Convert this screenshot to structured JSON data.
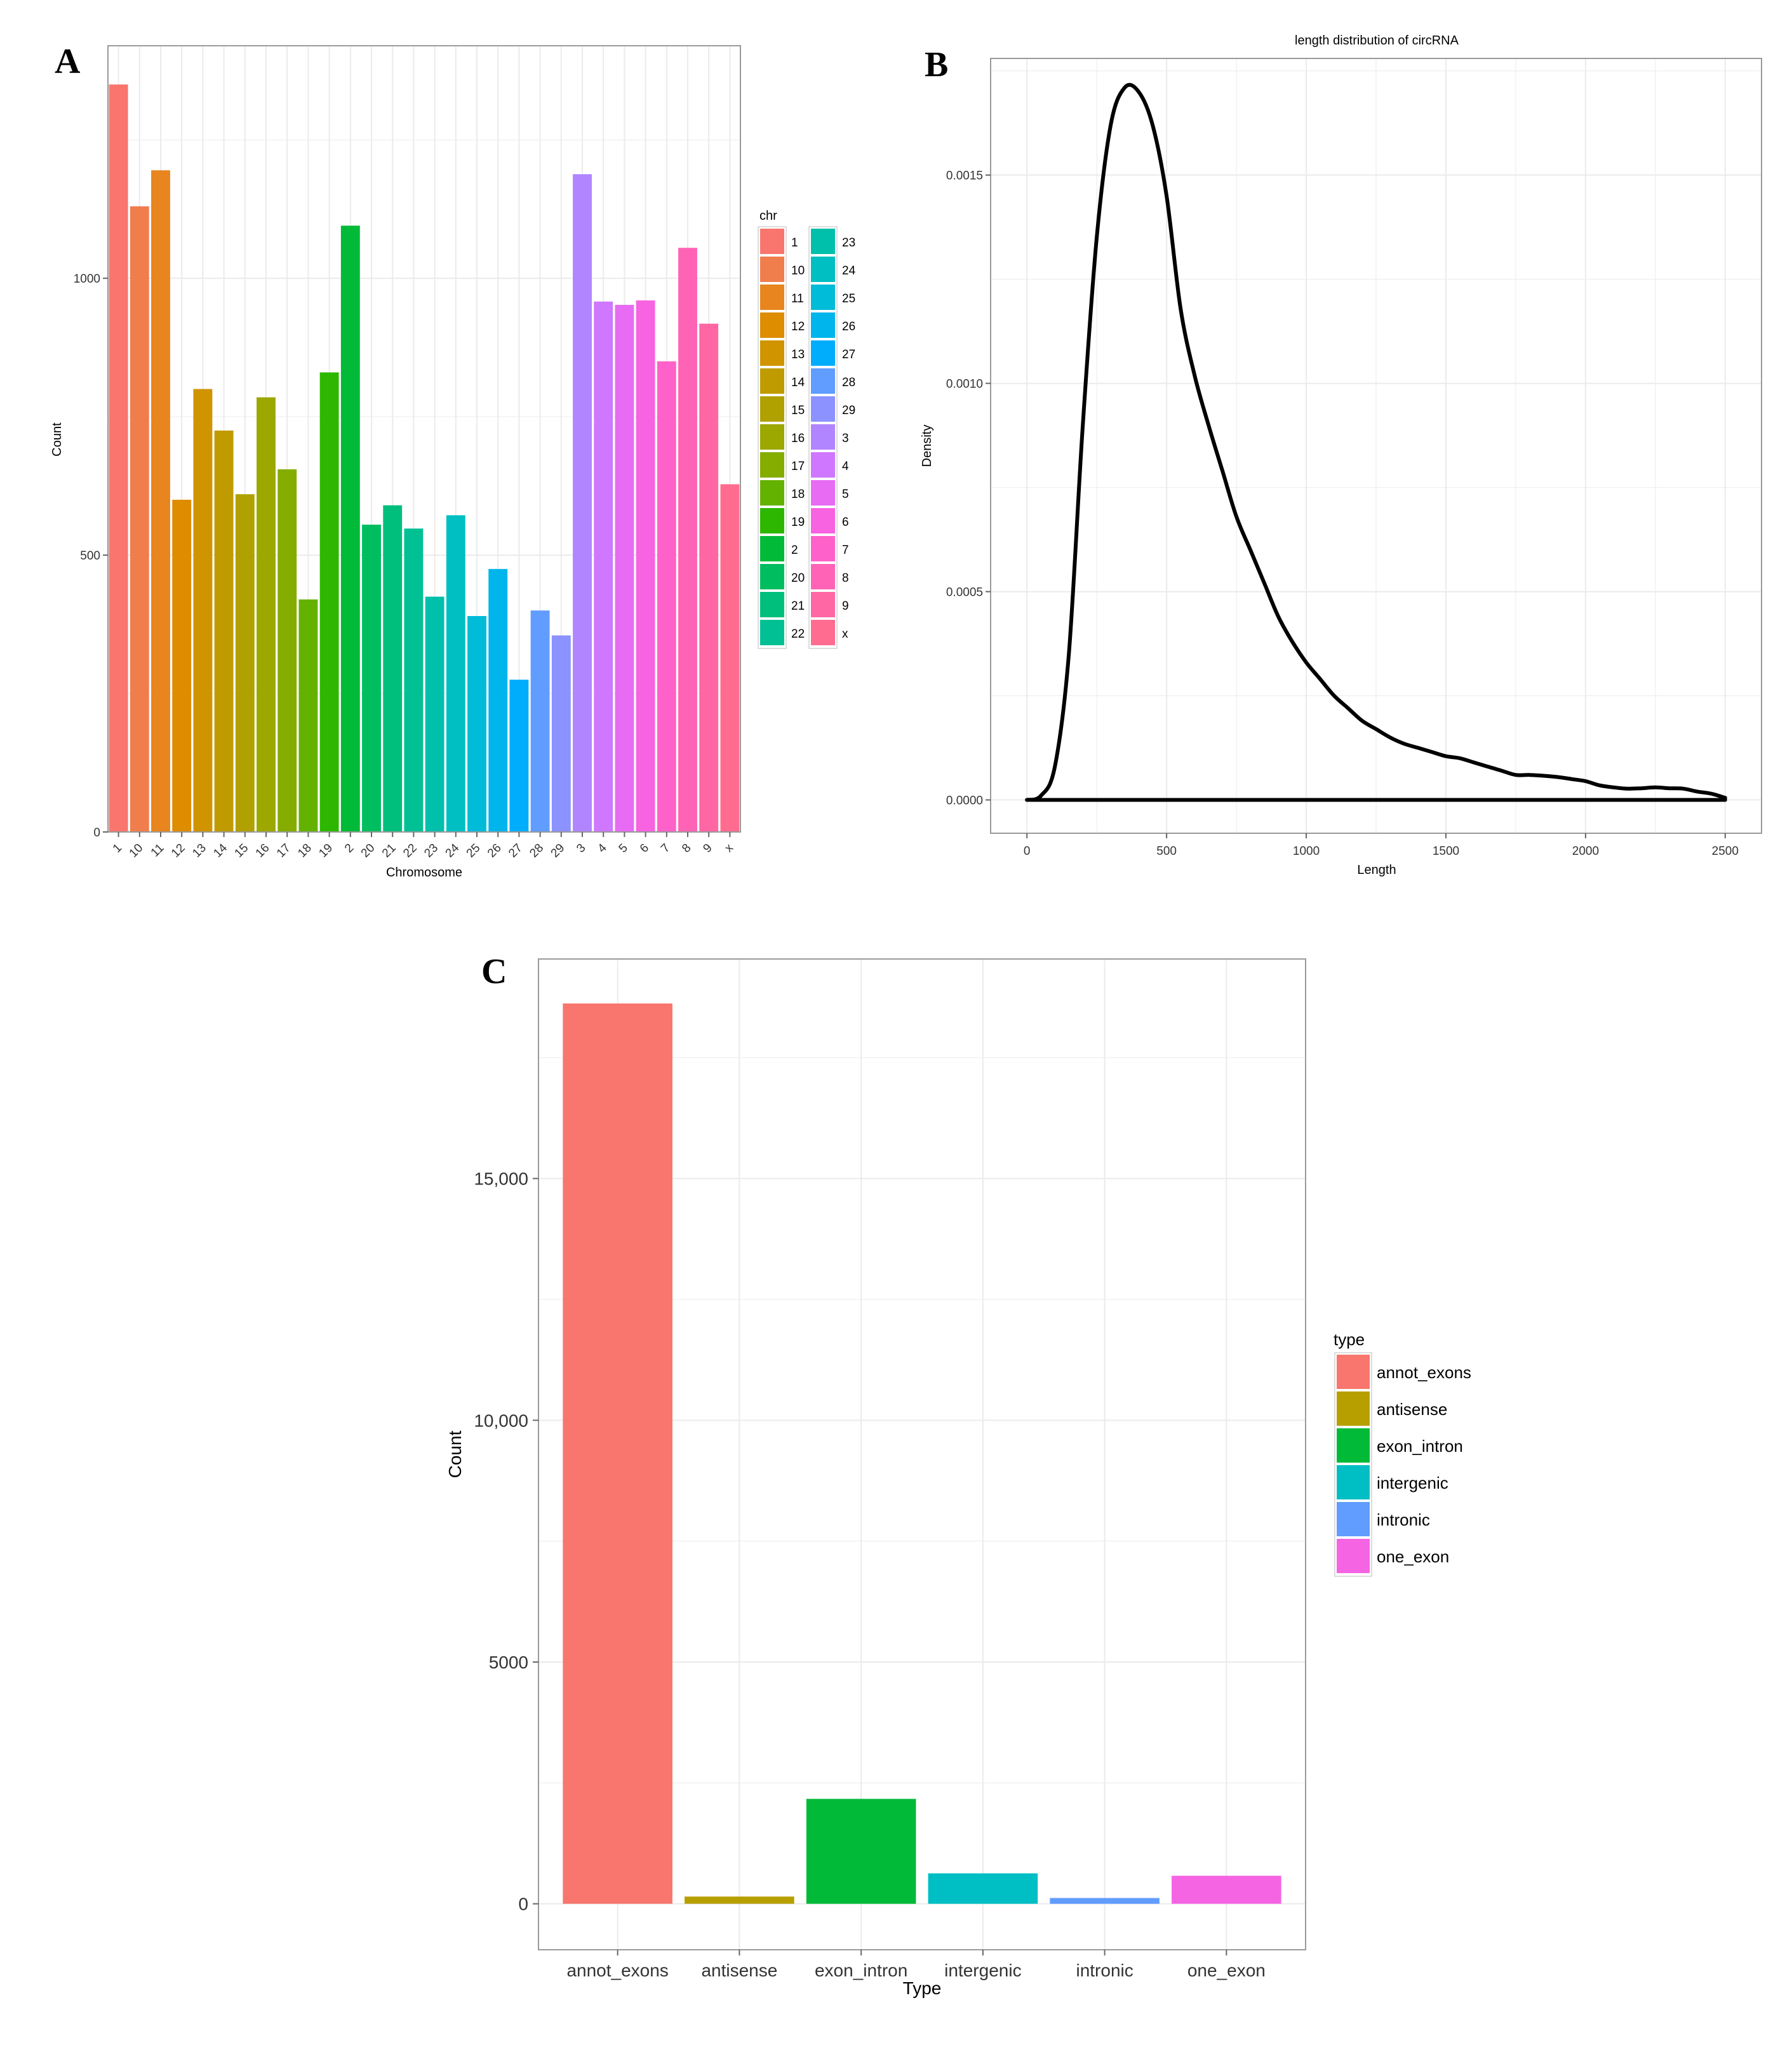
{
  "panels": {
    "a_label": "A",
    "b_label": "B",
    "c_label": "C"
  },
  "colors": {
    "grid": "#ebebeb",
    "frame": "#9a9a9a",
    "axis_text": "#333333",
    "curve": "#000000"
  },
  "chart_data": [
    {
      "id": "A",
      "type": "bar",
      "xlabel": "Chromosome",
      "ylabel": "Count",
      "ylim": [
        0,
        1420
      ],
      "yticks": [
        0,
        500,
        1000
      ],
      "ytick_labels": [
        "0",
        "500",
        "1000"
      ],
      "categories": [
        "1",
        "10",
        "11",
        "12",
        "13",
        "14",
        "15",
        "16",
        "17",
        "18",
        "19",
        "2",
        "20",
        "21",
        "22",
        "23",
        "24",
        "25",
        "26",
        "27",
        "28",
        "29",
        "3",
        "4",
        "5",
        "6",
        "7",
        "8",
        "9",
        "x"
      ],
      "values": [
        1350,
        1130,
        1195,
        600,
        800,
        725,
        610,
        785,
        655,
        420,
        830,
        1095,
        555,
        590,
        548,
        425,
        572,
        390,
        475,
        275,
        400,
        355,
        1188,
        958,
        952,
        960,
        850,
        1055,
        918,
        628
      ],
      "colors": [
        "#f8766d",
        "#f07e4d",
        "#e8851e",
        "#de8c00",
        "#cf9400",
        "#c09b00",
        "#b0a100",
        "#9ca700",
        "#84ad00",
        "#64b200",
        "#2db700",
        "#00ba38",
        "#00bd5f",
        "#00bf7c",
        "#00c094",
        "#00c0ab",
        "#00bfc2",
        "#00bcd8",
        "#00b5ec",
        "#00acfc",
        "#619cff",
        "#8c92ff",
        "#b185ff",
        "#cf78ff",
        "#e76bf3",
        "#f763e0",
        "#ff61ca",
        "#ff63b6",
        "#ff67a4",
        "#ff6c90"
      ],
      "legend": {
        "title": "chr",
        "col1": [
          "1",
          "10",
          "11",
          "12",
          "13",
          "14",
          "15",
          "16",
          "17",
          "18",
          "19",
          "2",
          "20",
          "21",
          "22"
        ],
        "col2": [
          "23",
          "24",
          "25",
          "26",
          "27",
          "28",
          "29",
          "3",
          "4",
          "5",
          "6",
          "7",
          "8",
          "9",
          "x"
        ]
      }
    },
    {
      "id": "B",
      "type": "line",
      "title": "length distribution of circRNA",
      "xlabel": "Length",
      "ylabel": "Density",
      "xlim": [
        -130,
        2630
      ],
      "ylim": [
        -8e-05,
        0.00178
      ],
      "xticks": [
        0,
        500,
        1000,
        1500,
        2000,
        2500
      ],
      "xtick_labels": [
        "0",
        "500",
        "1000",
        "1500",
        "2000",
        "2500"
      ],
      "yticks": [
        0,
        0.0005,
        0.001,
        0.0015
      ],
      "ytick_labels": [
        "0.0000",
        "0.0005",
        "0.0010",
        "0.0015"
      ],
      "x": [
        0,
        50,
        100,
        150,
        200,
        250,
        300,
        350,
        400,
        450,
        500,
        550,
        600,
        650,
        700,
        750,
        800,
        850,
        900,
        950,
        1000,
        1050,
        1100,
        1150,
        1200,
        1250,
        1300,
        1350,
        1400,
        1450,
        1500,
        1550,
        1600,
        1650,
        1700,
        1750,
        1800,
        1850,
        1900,
        1950,
        2000,
        2050,
        2100,
        2150,
        2200,
        2250,
        2300,
        2350,
        2400,
        2450,
        2500
      ],
      "y": [
        0.0,
        1e-05,
        8e-05,
        0.00035,
        0.0009,
        0.00135,
        0.00162,
        0.00171,
        0.0017,
        0.00162,
        0.00145,
        0.00118,
        0.00102,
        0.0009,
        0.00079,
        0.00068,
        0.0006,
        0.00052,
        0.00044,
        0.00038,
        0.00033,
        0.00029,
        0.00025,
        0.00022,
        0.00019,
        0.00017,
        0.00015,
        0.000135,
        0.000125,
        0.000115,
        0.000105,
        0.0001,
        9e-05,
        8e-05,
        7e-05,
        6e-05,
        6e-05,
        5.8e-05,
        5.5e-05,
        5e-05,
        4.5e-05,
        3.5e-05,
        3e-05,
        2.7e-05,
        2.8e-05,
        3e-05,
        2.8e-05,
        2.7e-05,
        2e-05,
        1.5e-05,
        5e-06
      ],
      "baseline": [
        0,
        2500
      ]
    },
    {
      "id": "C",
      "type": "bar",
      "xlabel": "Type",
      "ylabel": "Count",
      "ylim": [
        -950,
        19540
      ],
      "yticks": [
        0,
        5000,
        10000,
        15000
      ],
      "ytick_labels": [
        "0",
        "5000",
        "10,000",
        "15,000"
      ],
      "categories": [
        "annot_exons",
        "antisense",
        "exon_intron",
        "intergenic",
        "intronic",
        "one_exon"
      ],
      "values": [
        18620,
        150,
        2170,
        630,
        120,
        580
      ],
      "colors": [
        "#f8766d",
        "#b79f00",
        "#00ba38",
        "#00bfc4",
        "#619cff",
        "#f564e3"
      ],
      "legend": {
        "title": "type",
        "items": [
          "annot_exons",
          "antisense",
          "exon_intron",
          "intergenic",
          "intronic",
          "one_exon"
        ]
      }
    }
  ]
}
